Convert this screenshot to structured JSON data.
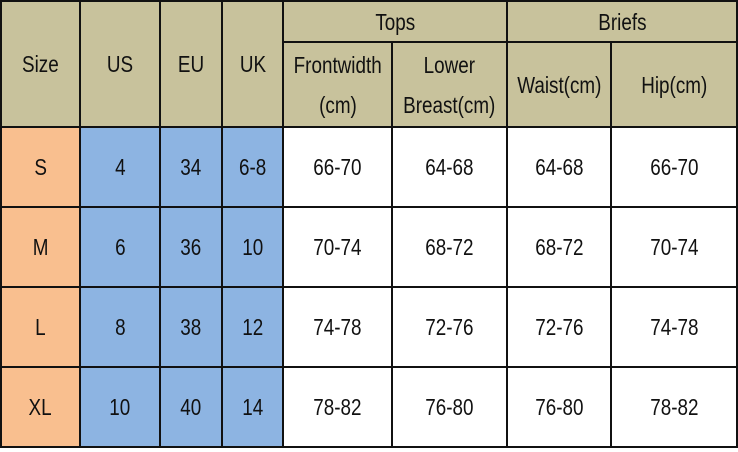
{
  "header": {
    "size": "Size",
    "us": "US",
    "eu": "EU",
    "uk": "UK",
    "tops": "Tops",
    "briefs": "Briefs",
    "frontwidth": [
      "Frontwidth",
      "(cm)"
    ],
    "lower_breast": [
      "Lower",
      "Breast(cm)"
    ],
    "waist": "Waist(cm)",
    "hip": "Hip(cm)"
  },
  "rows": [
    {
      "size": "S",
      "us": "4",
      "eu": "34",
      "uk": "6-8",
      "frontwidth": "66-70",
      "lower_breast": "64-68",
      "waist": "64-68",
      "hip": "66-70"
    },
    {
      "size": "M",
      "us": "6",
      "eu": "36",
      "uk": "10",
      "frontwidth": "70-74",
      "lower_breast": "68-72",
      "waist": "68-72",
      "hip": "70-74"
    },
    {
      "size": "L",
      "us": "8",
      "eu": "38",
      "uk": "12",
      "frontwidth": "74-78",
      "lower_breast": "72-76",
      "waist": "72-76",
      "hip": "74-78"
    },
    {
      "size": "XL",
      "us": "10",
      "eu": "40",
      "uk": "14",
      "frontwidth": "78-82",
      "lower_breast": "76-80",
      "waist": "76-80",
      "hip": "78-82"
    }
  ],
  "colors": {
    "header": "#C8C29C",
    "size_column": "#F9BF8F",
    "conversion_columns": "#8DB4E2",
    "values": "#FFFFFF"
  }
}
